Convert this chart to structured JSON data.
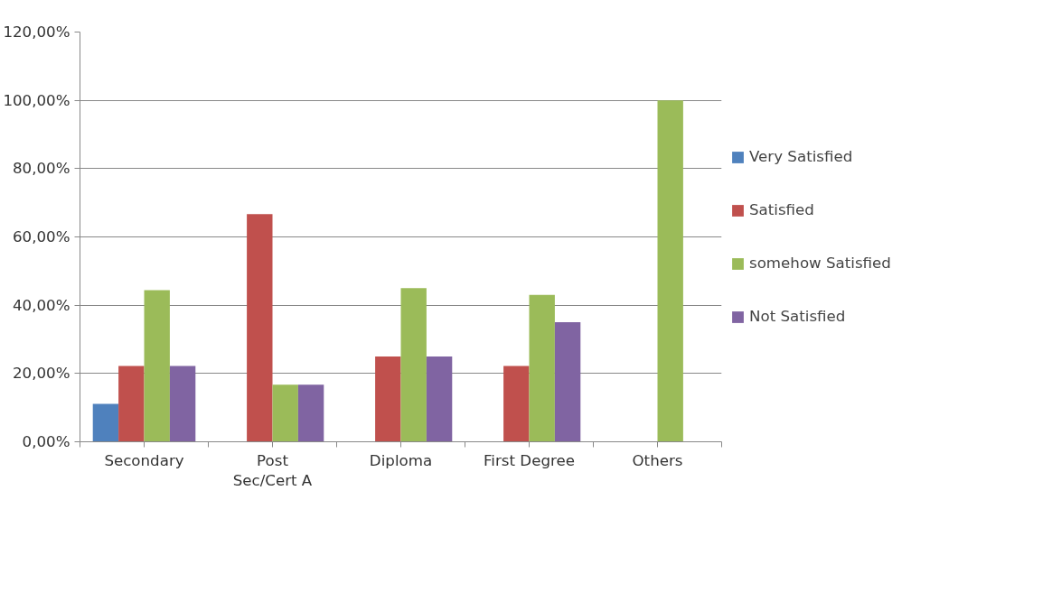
{
  "chart_data": {
    "type": "bar",
    "categories": [
      "Secondary",
      "Post Sec/Cert A",
      "Diploma",
      "First Degree",
      "Others"
    ],
    "series": [
      {
        "name": "Very Satisfied",
        "color": "#4f81bd",
        "values": [
          11.1,
          0,
          0,
          0,
          0
        ]
      },
      {
        "name": "Satisfied",
        "color": "#c0504d",
        "values": [
          22.2,
          66.7,
          25,
          22.2,
          0
        ]
      },
      {
        "name": "somehow Satisfied",
        "color": "#9bbb59",
        "values": [
          44.4,
          16.7,
          45,
          43,
          100
        ]
      },
      {
        "name": "Not Satisfied",
        "color": "#8064a2",
        "values": [
          22.2,
          16.7,
          25,
          35,
          0
        ]
      }
    ],
    "ylim": [
      0,
      120
    ],
    "yticks": [
      {
        "value": 0,
        "label": "0,00%"
      },
      {
        "value": 20,
        "label": "20,00%"
      },
      {
        "value": 40,
        "label": "40,00%"
      },
      {
        "value": 60,
        "label": "60,00%"
      },
      {
        "value": 80,
        "label": "80,00%"
      },
      {
        "value": 100,
        "label": "100,00%"
      },
      {
        "value": 120,
        "label": "120,00%"
      }
    ],
    "grid": "y",
    "legend": "right"
  }
}
